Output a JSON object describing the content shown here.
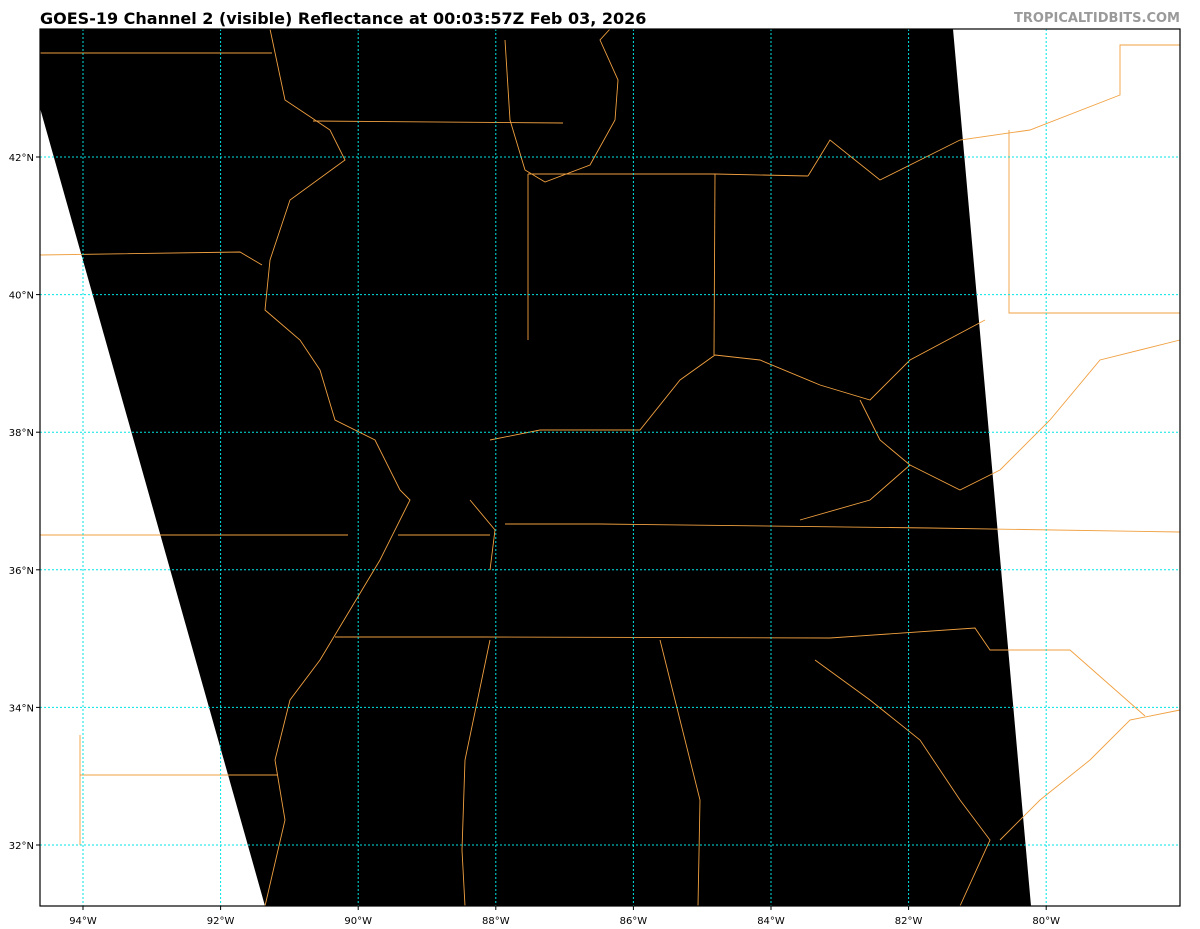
{
  "title": "GOES-19 Channel 2 (visible) Reflectance at 00:03:57Z Feb 03, 2026",
  "credit": "TROPICALTIDBITS.COM",
  "map": {
    "extent_lon_w": [
      94.6,
      78.0
    ],
    "extent_lat_n": [
      31.1,
      43.8
    ],
    "lat_ticks": [
      "42°N",
      "40°N",
      "38°N",
      "36°N",
      "34°N",
      "32°N"
    ],
    "lat_values": [
      42,
      40,
      38,
      36,
      34,
      32
    ],
    "lon_ticks": [
      "94°W",
      "92°W",
      "90°W",
      "88°W",
      "86°W",
      "84°W",
      "82°W",
      "80°W"
    ],
    "lon_values": [
      94,
      92,
      90,
      88,
      86,
      84,
      82,
      80
    ],
    "colors": {
      "imagery": "#000000",
      "borders": "#f0a040",
      "grid": "#00e5e5",
      "no_data": "#ffffff"
    }
  }
}
